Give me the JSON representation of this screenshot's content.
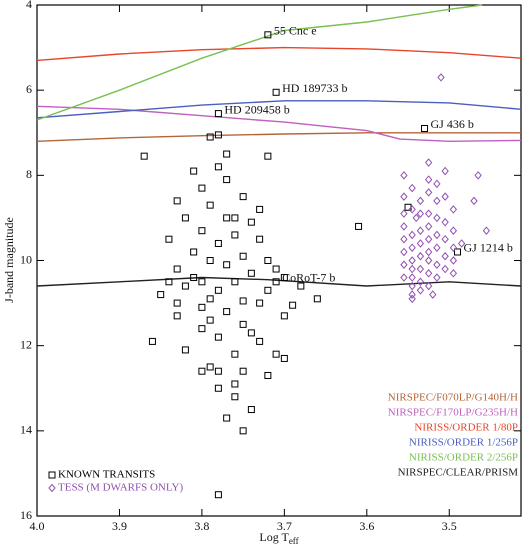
{
  "chart_data": {
    "type": "scatter",
    "xlabel": "Log T",
    "xlabel_subscript": "eff",
    "ylabel": "J-band magnitude",
    "xlim": [
      4.0,
      3.413
    ],
    "ylim": [
      16,
      4
    ],
    "xticks": [
      {
        "value": 4.0,
        "label": "4.0"
      },
      3.9,
      3.8,
      3.7,
      3.6,
      3.5
    ],
    "yticks": [
      4,
      6,
      8,
      10,
      12,
      14,
      16
    ],
    "series": [
      {
        "name": "NIRSPEC/F070LP/G140H/H",
        "type": "line",
        "color": "#b5653a",
        "x": [
          4.0,
          3.9,
          3.8,
          3.7,
          3.6,
          3.5,
          3.413
        ],
        "values": [
          7.2,
          7.12,
          7.07,
          7.03,
          7.0,
          7.0,
          7.0
        ]
      },
      {
        "name": "NIRSPEC/F170LP/G235H/H",
        "type": "line",
        "color": "#c060c0",
        "x": [
          4.0,
          3.9,
          3.8,
          3.7,
          3.6,
          3.56,
          3.5,
          3.413
        ],
        "values": [
          6.38,
          6.45,
          6.6,
          6.75,
          6.95,
          7.15,
          7.2,
          7.18
        ]
      },
      {
        "name": "NIRISS/ORDER 1/80P",
        "type": "line",
        "color": "#e8452a",
        "x": [
          4.0,
          3.9,
          3.8,
          3.7,
          3.6,
          3.5,
          3.413
        ],
        "values": [
          5.3,
          5.15,
          5.05,
          5.0,
          5.03,
          5.12,
          5.25
        ]
      },
      {
        "name": "NIRISS/ORDER 1/256P",
        "type": "line",
        "color": "#4a5fc0",
        "x": [
          4.0,
          3.9,
          3.8,
          3.7,
          3.6,
          3.5,
          3.413
        ],
        "values": [
          6.65,
          6.5,
          6.35,
          6.25,
          6.25,
          6.3,
          6.45
        ]
      },
      {
        "name": "NIRISS/ORDER 2/256P",
        "type": "line",
        "color": "#78c050",
        "x": [
          4.0,
          3.9,
          3.8,
          3.7,
          3.6,
          3.5,
          3.46
        ],
        "values": [
          6.7,
          6.0,
          5.25,
          4.6,
          4.4,
          4.1,
          4.0
        ]
      },
      {
        "name": "NIRSPEC/CLEAR/PRISM",
        "type": "line",
        "color": "#222222",
        "x": [
          4.0,
          3.9,
          3.8,
          3.72,
          3.6,
          3.5,
          3.413
        ],
        "values": [
          10.6,
          10.5,
          10.4,
          10.45,
          10.6,
          10.5,
          10.6
        ]
      },
      {
        "name": "KNOWN TRANSITS",
        "type": "scatter",
        "marker": "square",
        "color": "#000000",
        "x": [
          3.87,
          3.79,
          3.78,
          3.81,
          3.78,
          3.72,
          3.77,
          3.8,
          3.83,
          3.79,
          3.75,
          3.73,
          3.82,
          3.77,
          3.74,
          3.8,
          3.76,
          3.84,
          3.78,
          3.73,
          3.81,
          3.75,
          3.61,
          3.79,
          3.77,
          3.83,
          3.74,
          3.7,
          3.8,
          3.76,
          3.82,
          3.78,
          3.72,
          3.68,
          3.85,
          3.79,
          3.75,
          3.66,
          3.73,
          3.8,
          3.77,
          3.83,
          3.7,
          3.75,
          3.8,
          3.78,
          3.73,
          3.86,
          3.82,
          3.76,
          3.7,
          3.79,
          3.8,
          3.75,
          3.72,
          3.78,
          3.76,
          3.74,
          3.77,
          3.75,
          3.78,
          3.71,
          3.69,
          3.81,
          3.77,
          3.84,
          3.76,
          3.79,
          3.74,
          3.72,
          3.78,
          3.83,
          3.55,
          3.71,
          3.76,
          3.72,
          3.71,
          3.78,
          3.53,
          3.49,
          3.71
        ],
        "values": [
          7.55,
          7.1,
          7.05,
          7.9,
          7.8,
          7.55,
          8.1,
          8.3,
          8.6,
          8.7,
          8.5,
          8.8,
          9.0,
          9.0,
          9.1,
          9.3,
          9.4,
          9.5,
          9.6,
          9.5,
          9.8,
          9.9,
          9.2,
          10.0,
          10.1,
          10.2,
          10.3,
          10.4,
          10.5,
          10.5,
          10.6,
          10.7,
          10.7,
          10.6,
          10.8,
          10.9,
          10.95,
          10.9,
          11.0,
          11.1,
          11.2,
          11.3,
          11.3,
          11.5,
          11.6,
          11.8,
          11.9,
          11.9,
          12.1,
          12.2,
          12.3,
          12.5,
          12.6,
          12.6,
          12.7,
          13.0,
          13.2,
          13.5,
          13.7,
          14.0,
          15.5,
          10.2,
          11.05,
          10.4,
          7.5,
          10.5,
          9.0,
          11.4,
          11.7,
          10.0,
          12.6,
          11.0,
          8.75,
          12.2,
          12.9,
          4.7,
          6.05,
          6.55,
          6.9,
          9.8,
          10.5
        ]
      },
      {
        "name": "TESS (M DWARFS ONLY)",
        "type": "scatter",
        "marker": "diamond",
        "color": "#9050b0",
        "x": [
          3.555,
          3.555,
          3.555,
          3.555,
          3.555,
          3.555,
          3.555,
          3.555,
          3.545,
          3.545,
          3.545,
          3.545,
          3.545,
          3.545,
          3.545,
          3.545,
          3.545,
          3.545,
          3.535,
          3.535,
          3.535,
          3.535,
          3.535,
          3.535,
          3.535,
          3.535,
          3.525,
          3.525,
          3.525,
          3.525,
          3.525,
          3.525,
          3.525,
          3.525,
          3.525,
          3.525,
          3.515,
          3.515,
          3.515,
          3.515,
          3.515,
          3.515,
          3.515,
          3.505,
          3.505,
          3.505,
          3.505,
          3.505,
          3.505,
          3.495,
          3.495,
          3.495,
          3.495,
          3.495,
          3.485,
          3.465,
          3.455,
          3.51,
          3.47,
          3.54,
          3.52
        ],
        "values": [
          8.0,
          8.5,
          8.9,
          9.2,
          9.5,
          9.8,
          10.1,
          10.4,
          8.3,
          8.8,
          9.4,
          9.7,
          10.0,
          10.2,
          10.4,
          10.6,
          10.8,
          10.9,
          8.6,
          8.9,
          9.3,
          9.6,
          9.9,
          10.2,
          10.5,
          10.7,
          7.7,
          8.1,
          8.4,
          8.9,
          9.2,
          9.5,
          9.8,
          10.0,
          10.3,
          10.6,
          8.2,
          8.6,
          9.0,
          9.4,
          9.7,
          10.1,
          10.4,
          7.9,
          8.5,
          9.1,
          9.5,
          9.9,
          10.2,
          8.8,
          9.3,
          9.7,
          10.0,
          10.3,
          9.6,
          8.0,
          9.3,
          5.7,
          8.6,
          9.0,
          10.8
        ]
      }
    ],
    "annotations": [
      {
        "text": "55 Cnc e",
        "x": 3.72,
        "y": 4.7
      },
      {
        "text": "HD 189733 b",
        "x": 3.71,
        "y": 6.05
      },
      {
        "text": "HD 209458 b",
        "x": 3.78,
        "y": 6.55
      },
      {
        "text": "GJ 436 b",
        "x": 3.53,
        "y": 6.9
      },
      {
        "text": "GJ 1214 b",
        "x": 3.49,
        "y": 9.8
      },
      {
        "text": "CoRoT-7 b",
        "x": 3.71,
        "y": 10.5
      }
    ]
  }
}
